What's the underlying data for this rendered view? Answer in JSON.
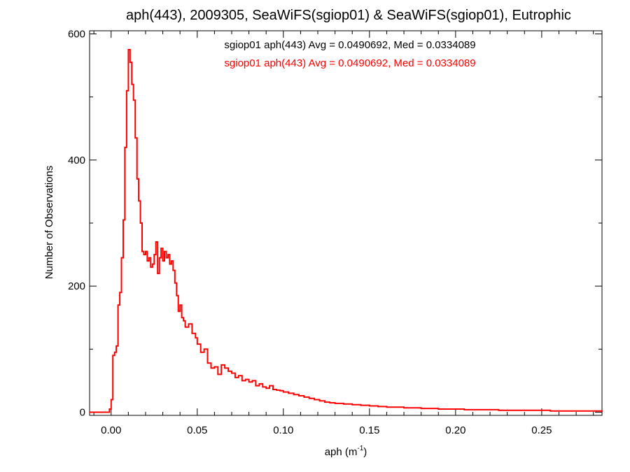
{
  "chart_data": {
    "type": "line",
    "title": "aph(443), 2009305, SeaWiFS(sgiop01) & SeaWiFS(sgiop01), Eutrophic",
    "annotations": [
      {
        "text": "sgiop01 aph(443) Avg = 0.0490692, Med = 0.0334089",
        "color": "#000000"
      },
      {
        "text": "sgiop01 aph(443) Avg = 0.0490692, Med = 0.0334089",
        "color": "#ff0000"
      }
    ],
    "xlabel": "aph (m",
    "xlabel_sup": "-1",
    "xlabel_end": ")",
    "ylabel": "Number of Observations",
    "xlim": [
      -0.0125,
      0.285
    ],
    "ylim": [
      -5,
      605
    ],
    "xticks": [
      0.0,
      0.05,
      0.1,
      0.15,
      0.2,
      0.25
    ],
    "xtick_labels": [
      "0.00",
      "0.05",
      "0.10",
      "0.15",
      "0.20",
      "0.25"
    ],
    "yticks": [
      0,
      200,
      400,
      600
    ],
    "ytick_labels": [
      "0",
      "200",
      "400",
      "600"
    ],
    "series_color": "#ff0000",
    "grid": false,
    "series": [
      {
        "step": true,
        "x": [
          -0.0125,
          -0.001,
          0.0,
          0.001,
          0.002,
          0.003,
          0.004,
          0.005,
          0.006,
          0.007,
          0.008,
          0.009,
          0.01,
          0.011,
          0.012,
          0.013,
          0.014,
          0.015,
          0.016,
          0.017,
          0.018,
          0.019,
          0.02,
          0.021,
          0.022,
          0.023,
          0.024,
          0.025,
          0.026,
          0.027,
          0.028,
          0.029,
          0.03,
          0.031,
          0.032,
          0.033,
          0.034,
          0.035,
          0.036,
          0.037,
          0.038,
          0.039,
          0.04,
          0.041,
          0.042,
          0.043,
          0.045,
          0.047,
          0.049,
          0.05,
          0.052,
          0.054,
          0.056,
          0.058,
          0.06,
          0.062,
          0.064,
          0.066,
          0.068,
          0.07,
          0.072,
          0.074,
          0.076,
          0.078,
          0.08,
          0.082,
          0.084,
          0.086,
          0.088,
          0.09,
          0.092,
          0.094,
          0.096,
          0.098,
          0.1,
          0.103,
          0.106,
          0.109,
          0.112,
          0.115,
          0.118,
          0.121,
          0.124,
          0.127,
          0.13,
          0.135,
          0.14,
          0.145,
          0.15,
          0.155,
          0.16,
          0.165,
          0.17,
          0.175,
          0.18,
          0.185,
          0.19,
          0.195,
          0.2,
          0.205,
          0.21,
          0.215,
          0.22,
          0.225,
          0.23,
          0.235,
          0.24,
          0.245,
          0.25,
          0.255,
          0.26,
          0.265,
          0.27,
          0.275,
          0.28,
          0.285
        ],
        "y": [
          0,
          5,
          20,
          90,
          95,
          105,
          170,
          190,
          245,
          305,
          420,
          510,
          575,
          555,
          520,
          495,
          435,
          370,
          335,
          300,
          255,
          250,
          255,
          240,
          245,
          230,
          235,
          250,
          270,
          220,
          245,
          260,
          240,
          255,
          245,
          250,
          235,
          240,
          225,
          205,
          185,
          160,
          170,
          150,
          145,
          135,
          140,
          125,
          118,
          108,
          95,
          100,
          78,
          70,
          72,
          60,
          75,
          70,
          65,
          62,
          55,
          58,
          50,
          52,
          48,
          50,
          42,
          45,
          40,
          38,
          42,
          36,
          35,
          34,
          32,
          30,
          28,
          26,
          24,
          22,
          20,
          18,
          16,
          15,
          14,
          13,
          12,
          11,
          10,
          9,
          8,
          8,
          7,
          7,
          6,
          6,
          5,
          5,
          5,
          4,
          4,
          4,
          4,
          3,
          3,
          3,
          3,
          3,
          3,
          2,
          2,
          2,
          2,
          2,
          2,
          1
        ]
      }
    ]
  }
}
